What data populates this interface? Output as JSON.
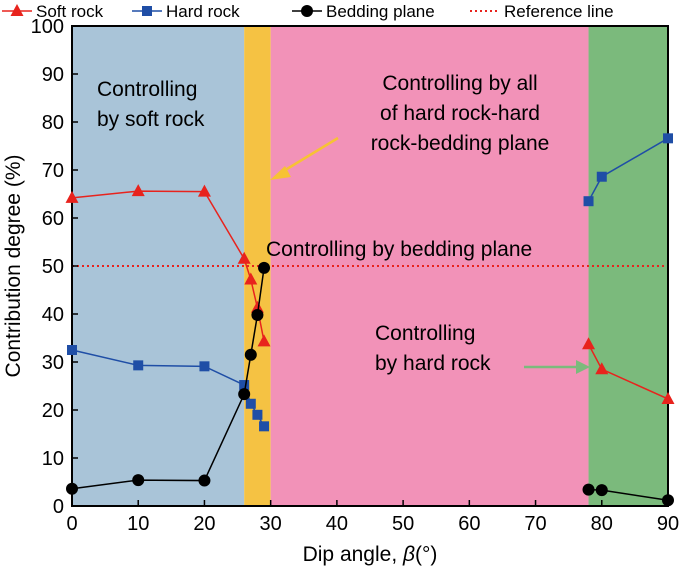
{
  "chart_data": {
    "type": "line",
    "xlabel": "Dip angle,",
    "xlabel_symbol": "β",
    "xlabel_unit": "(°)",
    "ylabel": "Contribution degree (%)",
    "xlim": [
      0,
      90
    ],
    "ylim": [
      0,
      100
    ],
    "xticks": [
      0,
      10,
      20,
      30,
      40,
      50,
      60,
      70,
      80,
      90
    ],
    "yticks": [
      0,
      10,
      20,
      30,
      40,
      50,
      60,
      70,
      80,
      90,
      100
    ],
    "legend_position": "top",
    "legend": [
      {
        "label": "Soft rock",
        "marker": "triangle",
        "color": "#e8231d"
      },
      {
        "label": "Hard rock",
        "marker": "square",
        "color": "#1f4ea6"
      },
      {
        "label": "Bedding plane",
        "marker": "circle",
        "color": "#000000"
      },
      {
        "label": "Reference line",
        "marker": "dotted",
        "color": "#e8231d"
      }
    ],
    "regions": [
      {
        "x0": 0,
        "x1": 26,
        "color": "#a9c4d8",
        "label_lines": [
          "Controlling",
          "by soft rock"
        ]
      },
      {
        "x0": 26,
        "x1": 30,
        "color": "#f5c243",
        "label_lines": [
          "Controlling by  all",
          "of  hard rock-hard",
          "rock-bedding plane"
        ]
      },
      {
        "x0": 30,
        "x1": 78,
        "color": "#f292b8",
        "label_lines": [
          "Controlling by bedding plane"
        ]
      },
      {
        "x0": 78,
        "x1": 90,
        "color": "#7bba7c",
        "label_lines": [
          "Controlling",
          "by hard rock"
        ]
      }
    ],
    "reference_line": {
      "y": 50,
      "color": "#e8231d"
    },
    "series": [
      {
        "name": "Soft rock",
        "color": "#e8231d",
        "marker": "triangle",
        "segments": [
          [
            [
              0,
              64.2
            ],
            [
              10,
              65.6
            ],
            [
              20,
              65.5
            ],
            [
              26,
              51.5
            ],
            [
              27,
              47.2
            ],
            [
              28,
              41.3
            ],
            [
              29,
              34.3
            ]
          ],
          [
            [
              78,
              33.7
            ],
            [
              80,
              28.5
            ],
            [
              90,
              22.3
            ]
          ]
        ]
      },
      {
        "name": "Hard rock",
        "color": "#1f4ea6",
        "marker": "square",
        "segments": [
          [
            [
              0,
              32.5
            ],
            [
              10,
              29.3
            ],
            [
              20,
              29.1
            ],
            [
              26,
              25.2
            ],
            [
              27,
              21.3
            ],
            [
              28,
              19.0
            ],
            [
              29,
              16.6
            ]
          ],
          [
            [
              78,
              63.5
            ],
            [
              80,
              68.6
            ],
            [
              90,
              76.6
            ]
          ]
        ]
      },
      {
        "name": "Bedding plane",
        "color": "#000000",
        "marker": "circle",
        "segments": [
          [
            [
              0,
              3.6
            ],
            [
              10,
              5.4
            ],
            [
              20,
              5.3
            ],
            [
              26,
              23.3
            ],
            [
              27,
              31.5
            ],
            [
              28,
              39.8
            ],
            [
              29,
              49.6
            ]
          ],
          [
            [
              78,
              3.4
            ],
            [
              80,
              3.3
            ],
            [
              90,
              1.2
            ]
          ]
        ]
      }
    ]
  }
}
